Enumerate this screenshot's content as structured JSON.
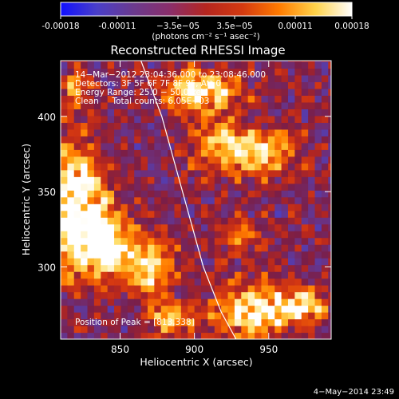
{
  "colorbar": {
    "tick_labels": [
      "-0.00018",
      "-0.00011",
      "−3.5e−05",
      "3.5e−05",
      "0.00011",
      "0.00018"
    ],
    "tick_values": [
      -0.00018,
      -0.00011,
      -3.5e-05,
      3.5e-05,
      0.00011,
      0.00018
    ],
    "range": [
      -0.00018,
      0.00018
    ],
    "unit_label": "(photons cm⁻² s⁻¹ asec⁻²)",
    "colors": [
      "#1010ff",
      "#4a3fc8",
      "#6b3a8e",
      "#8a2e6a",
      "#b5261f",
      "#d43a10",
      "#ff7b00",
      "#ffd34a",
      "#ffffff"
    ]
  },
  "chart_data": {
    "type": "heatmap",
    "title": "Reconstructed RHESSI Image",
    "xlabel": "Heliocentric X (arcsec)",
    "ylabel": "Heliocentric Y (arcsec)",
    "xlim": [
      810,
      992
    ],
    "ylim": [
      252,
      437
    ],
    "x_ticks": [
      850,
      900,
      950
    ],
    "y_ticks": [
      300,
      350,
      400
    ],
    "annotations": [
      "14−Mar−2012 23:04:36.000 to 23:08:46.000",
      "Detectors: 3F 5F 6F 7F 8F 9F, Att 0",
      "Energy Range: 25.0 − 50.0 keV",
      "Clean     Total counts: 6.05E+03"
    ],
    "peak_label": "Position of Peak = [813,338]",
    "peak_position": [
      813,
      338
    ],
    "limb_curve": [
      [
        864,
        437
      ],
      [
        878,
        400
      ],
      [
        892,
        350
      ],
      [
        906,
        300
      ],
      [
        918,
        270
      ],
      [
        928,
        252
      ]
    ],
    "bright_regions": [
      {
        "x": 820,
        "y": 340,
        "rx": 20,
        "ry": 40,
        "level": 1.0
      },
      {
        "x": 840,
        "y": 315,
        "rx": 18,
        "ry": 20,
        "level": 0.95
      },
      {
        "x": 870,
        "y": 300,
        "rx": 15,
        "ry": 18,
        "level": 0.75
      },
      {
        "x": 905,
        "y": 418,
        "rx": 25,
        "ry": 12,
        "level": 0.85
      },
      {
        "x": 918,
        "y": 380,
        "rx": 20,
        "ry": 18,
        "level": 0.7
      },
      {
        "x": 950,
        "y": 375,
        "rx": 18,
        "ry": 15,
        "level": 0.65
      },
      {
        "x": 935,
        "y": 270,
        "rx": 25,
        "ry": 18,
        "level": 0.8
      },
      {
        "x": 970,
        "y": 275,
        "rx": 18,
        "ry": 12,
        "level": 0.7
      },
      {
        "x": 885,
        "y": 265,
        "rx": 15,
        "ry": 12,
        "level": 0.6
      },
      {
        "x": 930,
        "y": 320,
        "rx": 15,
        "ry": 12,
        "level": 0.4
      },
      {
        "x": 820,
        "y": 420,
        "rx": 10,
        "ry": 12,
        "level": 0.45
      }
    ]
  },
  "footer": {
    "date_stamp": "4−May−2014 23:49"
  }
}
